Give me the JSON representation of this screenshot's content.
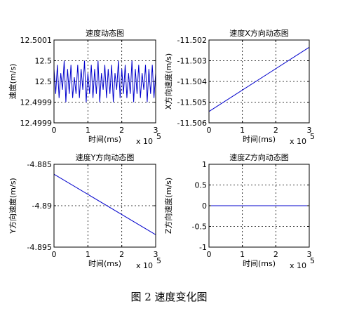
{
  "figure": {
    "caption": "图 2  速度变化图"
  },
  "chart_data": [
    {
      "type": "line",
      "title": "速度动态图",
      "xlabel": "时间(ms)",
      "ylabel": "速度(m/s)",
      "x_multiplier": "x 10",
      "x_exponent": "5",
      "xlim": [
        0,
        3
      ],
      "ylim": [
        12.4999,
        12.5001
      ],
      "xticks": [
        0,
        1,
        2,
        3
      ],
      "xtick_labels": [
        "0",
        "1",
        "2",
        "3"
      ],
      "yticks": [
        12.4999,
        12.49995,
        12.5,
        12.50005,
        12.5001
      ],
      "ytick_labels": [
        "12.4999",
        "12.4999",
        "12.5",
        "12.5",
        "12.5001"
      ],
      "grid": true,
      "series": [
        {
          "color": "#0000cc",
          "x": [
            0,
            0.05,
            0.1,
            0.15,
            0.2,
            0.25,
            0.3,
            0.35,
            0.4,
            0.45,
            0.5,
            0.55,
            0.6,
            0.65,
            0.7,
            0.75,
            0.8,
            0.85,
            0.9,
            0.95,
            1.0,
            1.05,
            1.1,
            1.15,
            1.2,
            1.25,
            1.3,
            1.35,
            1.4,
            1.45,
            1.5,
            1.55,
            1.6,
            1.65,
            1.7,
            1.75,
            1.8,
            1.85,
            1.9,
            1.95,
            2.0,
            2.05,
            2.1,
            2.15,
            2.2,
            2.25,
            2.3,
            2.35,
            2.4,
            2.45,
            2.5,
            2.55,
            2.6,
            2.65,
            2.7,
            2.75,
            2.8,
            2.85,
            2.9,
            2.95,
            3.0
          ],
          "y": [
            12.50003,
            12.49997,
            12.50004,
            12.49996,
            12.50002,
            12.49998,
            12.50005,
            12.49995,
            12.50003,
            12.49997,
            12.50004,
            12.49996,
            12.50001,
            12.49997,
            12.50004,
            12.49996,
            12.50003,
            12.49998,
            12.50005,
            12.49995,
            12.50002,
            12.49997,
            12.50004,
            12.49996,
            12.50003,
            12.49997,
            12.50005,
            12.49995,
            12.50002,
            12.49998,
            12.50004,
            12.49996,
            12.50003,
            12.49997,
            12.50004,
            12.49995,
            12.50002,
            12.49998,
            12.50005,
            12.49996,
            12.50003,
            12.49997,
            12.50004,
            12.49996,
            12.50002,
            12.49997,
            12.50005,
            12.49995,
            12.50003,
            12.49997,
            12.50004,
            12.49996,
            12.50002,
            12.49998,
            12.50004,
            12.49995,
            12.50003,
            12.49997,
            12.50004,
            12.49996,
            12.50002
          ]
        }
      ]
    },
    {
      "type": "line",
      "title": "速度X方向动态图",
      "xlabel": "时间(ms)",
      "ylabel": "X方向速度(m/s)",
      "x_multiplier": "x 10",
      "x_exponent": "5",
      "xlim": [
        0,
        3
      ],
      "ylim": [
        -11.506,
        -11.502
      ],
      "xticks": [
        0,
        1,
        2,
        3
      ],
      "xtick_labels": [
        "0",
        "1",
        "2",
        "3"
      ],
      "yticks": [
        -11.506,
        -11.505,
        -11.504,
        -11.503,
        -11.502
      ],
      "ytick_labels": [
        "-11.506",
        "-11.505",
        "-11.504",
        "-11.503",
        "-11.502"
      ],
      "grid": true,
      "series": [
        {
          "color": "#0000cc",
          "x": [
            0,
            3
          ],
          "y": [
            -11.50545,
            -11.50235
          ]
        }
      ]
    },
    {
      "type": "line",
      "title": "速度Y方向动态图",
      "xlabel": "时间(ms)",
      "ylabel": "Y方向速度(m/s)",
      "x_multiplier": "x 10",
      "x_exponent": "5",
      "xlim": [
        0,
        3
      ],
      "ylim": [
        -4.895,
        -4.885
      ],
      "xticks": [
        0,
        1,
        2,
        3
      ],
      "xtick_labels": [
        "0",
        "1",
        "2",
        "3"
      ],
      "yticks": [
        -4.895,
        -4.89,
        -4.885
      ],
      "ytick_labels": [
        "-4.895",
        "-4.89",
        "-4.885"
      ],
      "grid": true,
      "series": [
        {
          "color": "#0000cc",
          "x": [
            0,
            3
          ],
          "y": [
            -4.8862,
            -4.8935
          ]
        }
      ]
    },
    {
      "type": "line",
      "title": "速度Z方向动态图",
      "xlabel": "时间(ms)",
      "ylabel": "Z方向速度(m/s)",
      "x_multiplier": "x 10",
      "x_exponent": "5",
      "xlim": [
        0,
        3
      ],
      "ylim": [
        -1,
        1
      ],
      "xticks": [
        0,
        1,
        2,
        3
      ],
      "xtick_labels": [
        "0",
        "1",
        "2",
        "3"
      ],
      "yticks": [
        -1,
        -0.5,
        0,
        0.5,
        1
      ],
      "ytick_labels": [
        "-1",
        "-0.5",
        "0",
        "0.5",
        "1"
      ],
      "grid": true,
      "series": [
        {
          "color": "#0000cc",
          "x": [
            0,
            3
          ],
          "y": [
            0,
            0
          ]
        }
      ]
    }
  ]
}
